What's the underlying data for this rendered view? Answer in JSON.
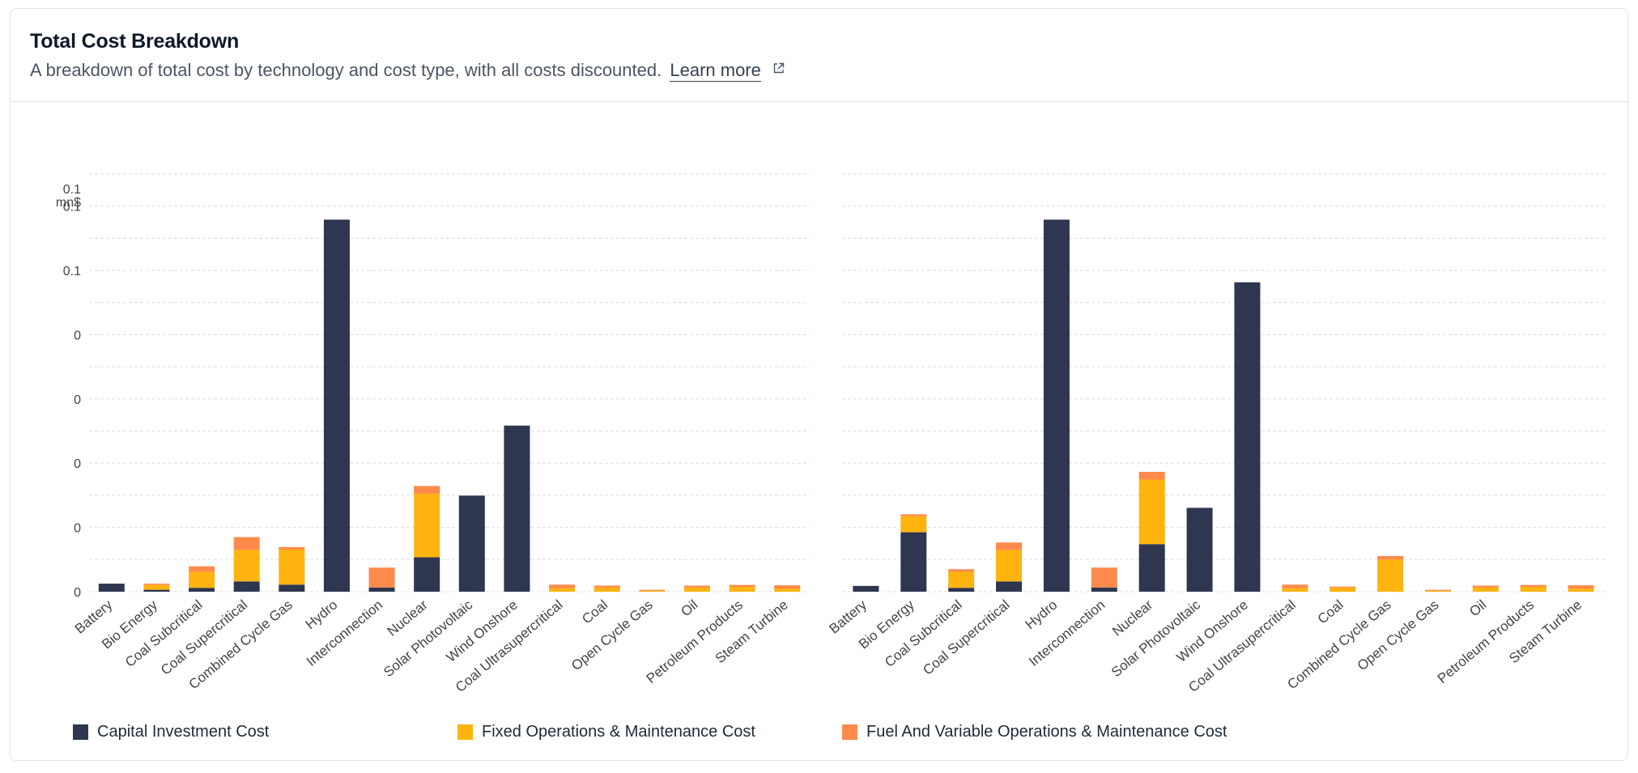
{
  "header": {
    "title": "Total Cost Breakdown",
    "subtitle": "A breakdown of total cost by technology and cost type, with all costs discounted.",
    "learn_more": "Learn more",
    "learn_more_icon": "external-link-icon"
  },
  "colors": {
    "capital": "#2e3650",
    "fixed": "#ffb30f",
    "fuel": "#ff8a4c",
    "grid": "#dddddd",
    "axis_text": "#444444"
  },
  "legend": [
    {
      "label": "Capital Investment Cost",
      "color": "#2e3650"
    },
    {
      "label": "Fixed Operations & Maintenance Cost",
      "color": "#ffb30f"
    },
    {
      "label": "Fuel And Variable Operations & Maintenance Cost",
      "color": "#ff8a4c"
    }
  ],
  "chart_data": [
    {
      "type": "bar",
      "stacked": true,
      "ylabel": "mn$",
      "ylim": [
        0,
        0.13
      ],
      "y_tick_values": [
        0,
        0.02,
        0.04,
        0.06,
        0.08,
        0.1,
        0.12
      ],
      "y_tick_labels": [
        "0",
        "0",
        "0",
        "0",
        "0",
        "0.1",
        "0.1"
      ],
      "grid": true,
      "categories": [
        "Battery",
        "Bio Energy",
        "Coal Subcritical",
        "Coal Supercritical",
        "Combined Cycle Gas",
        "Hydro",
        "Interconnection",
        "Nuclear",
        "Solar Photovoltaic",
        "Wind Onshore",
        "Coal Ultrasupercritical",
        "Coal",
        "Open Cycle Gas",
        "Oil",
        "Petroleum Products",
        "Steam Turbine"
      ],
      "series": [
        {
          "name": "Capital Investment Cost",
          "values": [
            0.0025,
            0.0006,
            0.0012,
            0.0032,
            0.0022,
            0.1158,
            0.0013,
            0.0107,
            0.0299,
            0.0517,
            0,
            0,
            0,
            0,
            0,
            0
          ]
        },
        {
          "name": "Fixed Operations & Maintenance Cost",
          "values": [
            0,
            0.0015,
            0.005,
            0.0098,
            0.0109,
            0,
            0,
            0.0198,
            0,
            0,
            0.0011,
            0.0013,
            0.0003,
            0.0013,
            0.0015,
            0.001
          ]
        },
        {
          "name": "Fuel And Variable Operations & Maintenance Cost",
          "values": [
            0,
            0.0004,
            0.0017,
            0.004,
            0.0008,
            0,
            0.0062,
            0.0024,
            0,
            0,
            0.0011,
            0.0006,
            0.0003,
            0.0006,
            0.0006,
            0.001
          ]
        }
      ]
    },
    {
      "type": "bar",
      "stacked": true,
      "ylim": [
        0,
        0.13
      ],
      "grid": true,
      "categories": [
        "Battery",
        "Bio Energy",
        "Coal Subcritical",
        "Coal Supercritical",
        "Hydro",
        "Interconnection",
        "Nuclear",
        "Solar Photovoltaic",
        "Wind Onshore",
        "Coal Ultrasupercritical",
        "Coal",
        "Combined Cycle Gas",
        "Open Cycle Gas",
        "Oil",
        "Petroleum Products",
        "Steam Turbine"
      ],
      "series": [
        {
          "name": "Capital Investment Cost",
          "values": [
            0.0018,
            0.0185,
            0.0012,
            0.0032,
            0.1158,
            0.0013,
            0.0148,
            0.0261,
            0.0963,
            0,
            0,
            0,
            0,
            0,
            0,
            0
          ]
        },
        {
          "name": "Fixed Operations & Maintenance Cost",
          "values": [
            0,
            0.005,
            0.005,
            0.0098,
            0,
            0,
            0.0201,
            0,
            0,
            0.0011,
            0.0013,
            0.01,
            0.0003,
            0.0013,
            0.0015,
            0.001
          ]
        },
        {
          "name": "Fuel And Variable Operations & Maintenance Cost",
          "values": [
            0,
            0.0006,
            0.0008,
            0.0023,
            0,
            0.0062,
            0.0024,
            0,
            0,
            0.0011,
            0.0003,
            0.0011,
            0.0003,
            0.0006,
            0.0006,
            0.001
          ]
        }
      ]
    }
  ]
}
